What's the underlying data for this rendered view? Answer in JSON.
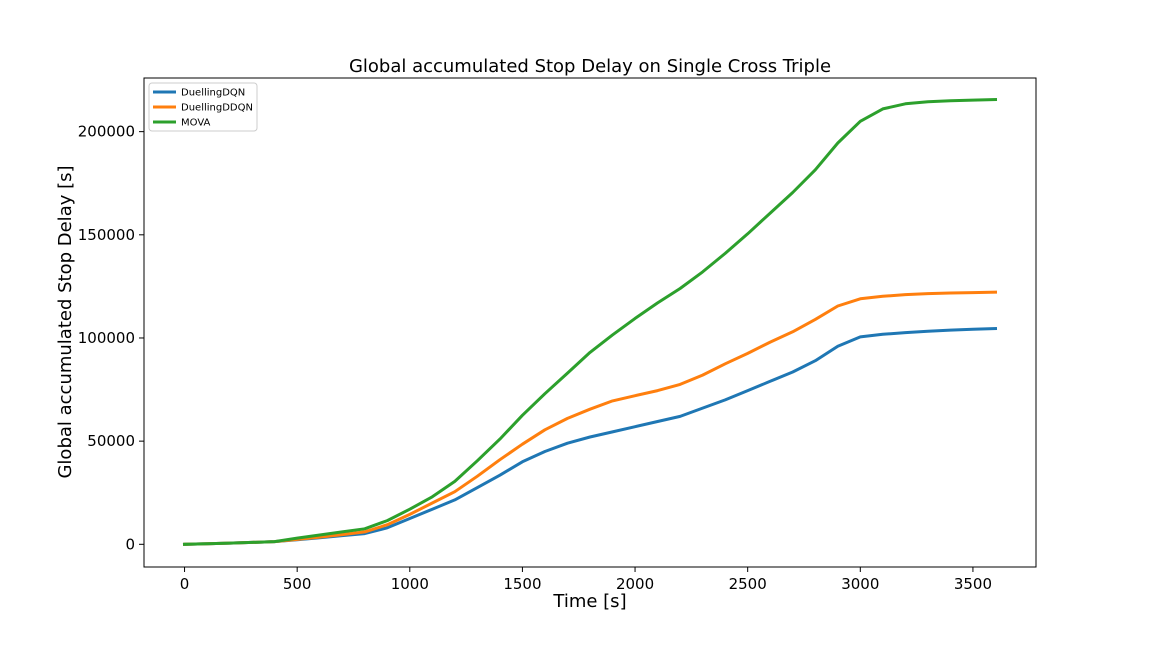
{
  "chart_data": {
    "type": "line",
    "title": "Global accumulated Stop Delay on Single Cross Triple",
    "xlabel": "Time [s]",
    "ylabel": "Global accumulated Stop Delay [s]",
    "xlim": [
      -180,
      3780
    ],
    "ylim": [
      -11000,
      226000
    ],
    "xticks": [
      0,
      500,
      1000,
      1500,
      2000,
      2500,
      3000,
      3500
    ],
    "yticks": [
      0,
      50000,
      100000,
      150000,
      200000
    ],
    "grid": false,
    "legend_position": "top-left",
    "x": [
      0,
      100,
      200,
      300,
      400,
      500,
      600,
      700,
      800,
      900,
      1000,
      1100,
      1200,
      1300,
      1400,
      1500,
      1600,
      1700,
      1800,
      1900,
      2000,
      2100,
      2200,
      2300,
      2400,
      2500,
      2600,
      2700,
      2800,
      2900,
      3000,
      3100,
      3200,
      3300,
      3400,
      3500,
      3600
    ],
    "series": [
      {
        "name": "DuellingDQN",
        "color": "#1f77b4",
        "values": [
          0,
          300,
          600,
          900,
          1300,
          2200,
          3200,
          4200,
          5200,
          8000,
          12500,
          17000,
          21500,
          27500,
          33500,
          40000,
          45000,
          49000,
          52000,
          54500,
          57000,
          59500,
          62000,
          66000,
          70000,
          74500,
          79000,
          83500,
          89000,
          96000,
          100500,
          101800,
          102600,
          103300,
          103800,
          104200,
          104600
        ]
      },
      {
        "name": "DuellingDDQN",
        "color": "#ff7f0e",
        "values": [
          0,
          300,
          600,
          900,
          1300,
          2400,
          3500,
          4700,
          6000,
          9500,
          14500,
          20000,
          25500,
          33000,
          41000,
          48500,
          55500,
          61000,
          65500,
          69500,
          72000,
          74500,
          77500,
          82000,
          87500,
          92500,
          98000,
          103000,
          109000,
          115500,
          119000,
          120200,
          121000,
          121500,
          121800,
          122000,
          122200
        ]
      },
      {
        "name": "MOVA",
        "color": "#2ca02c",
        "values": [
          0,
          300,
          600,
          900,
          1300,
          3000,
          4500,
          6000,
          7500,
          11500,
          17000,
          23000,
          30500,
          40500,
          51000,
          62500,
          73000,
          83000,
          93000,
          101500,
          109500,
          117000,
          124000,
          132000,
          141000,
          150500,
          160500,
          170500,
          181500,
          194500,
          205000,
          211000,
          213500,
          214500,
          215000,
          215300,
          215600
        ]
      }
    ]
  }
}
